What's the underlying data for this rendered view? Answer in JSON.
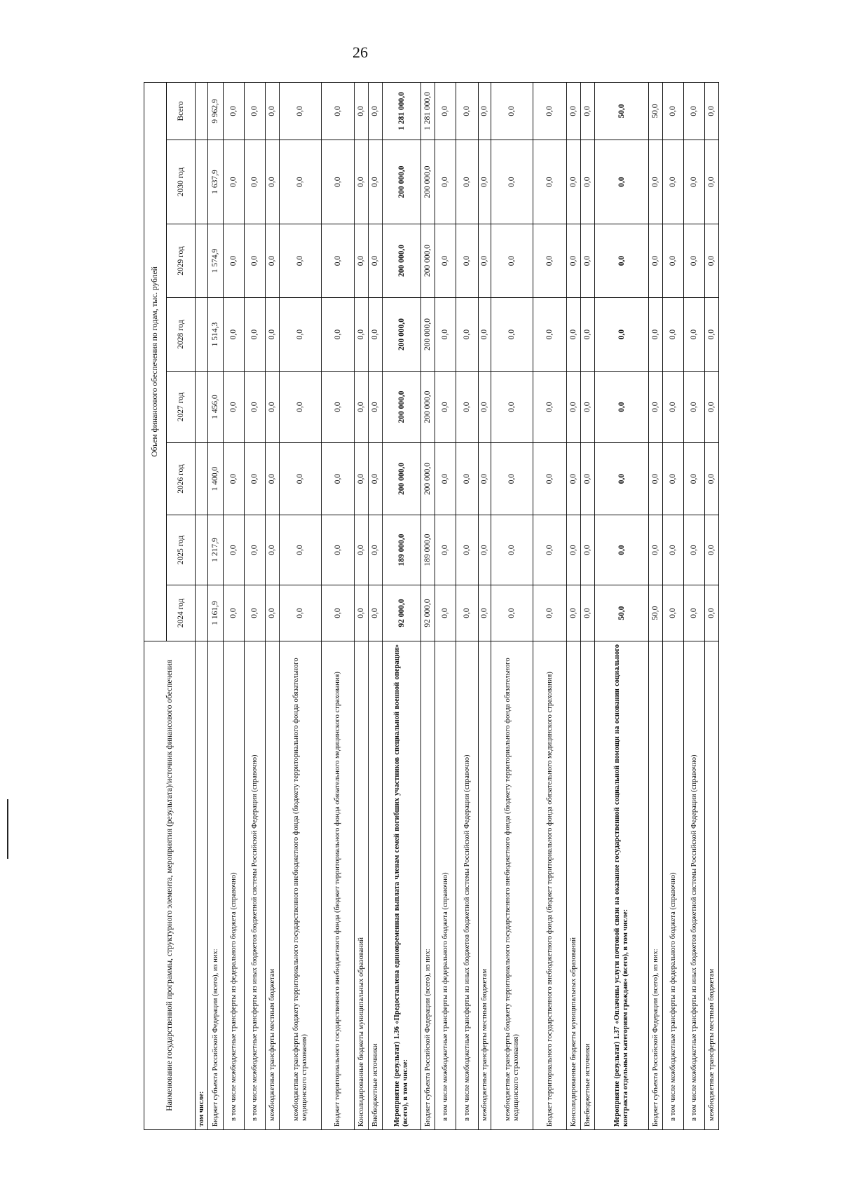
{
  "page_number": "26",
  "header": {
    "name_col": "Наименование государственной программы, структурного элемента, мероприятия (результата)/источник финансового обеспечения",
    "volume_col": "Объем финансового обеспечения по годам, тыс. рублей",
    "years": [
      "2024 год",
      "2025 год",
      "2026 год",
      "2027 год",
      "2028 год",
      "2029 год",
      "2030 год",
      "Всего"
    ]
  },
  "rows": [
    {
      "label": "том числе:",
      "values": [
        "",
        "",
        "",
        "",
        "",
        "",
        "",
        ""
      ],
      "bold": true,
      "h": 18
    },
    {
      "label": "Бюджет субъекта Российской Федерации (всего), из них:",
      "values": [
        "1 161,9",
        "1 217,9",
        "1 400,0",
        "1 456,0",
        "1 514,3",
        "1 574,9",
        "1 637,9",
        "9 962,9"
      ],
      "h": 22
    },
    {
      "label": "в том числе межбюджетные трансферты из федерального бюджета (справочно)",
      "values": [
        "0,0",
        "0,0",
        "0,0",
        "0,0",
        "0,0",
        "0,0",
        "0,0",
        "0,0"
      ],
      "indent": true,
      "h": 30
    },
    {
      "label": "в том числе межбюджетные трансферты из иных бюджетов бюджетной системы Российской Федерации (справочно)",
      "values": [
        "0,0",
        "0,0",
        "0,0",
        "0,0",
        "0,0",
        "0,0",
        "0,0",
        "0,0"
      ],
      "indent": true,
      "h": 30
    },
    {
      "label": "межбюджетные трансферты местным бюджетам",
      "values": [
        "0,0",
        "0,0",
        "0,0",
        "0,0",
        "0,0",
        "0,0",
        "0,0",
        "0,0"
      ],
      "indent": true,
      "h": 20
    },
    {
      "label": "межбюджетные трансферты бюджету территориального государственного внебюджетного фонда (бюджету территориального фонда обязательного медицинского страхования)",
      "values": [
        "0,0",
        "0,0",
        "0,0",
        "0,0",
        "0,0",
        "0,0",
        "0,0",
        "0,0"
      ],
      "indent": true,
      "h": 60
    },
    {
      "label": "Бюджет территориального государственного внебюджетного фонда (бюджет территориального фонда обязательного медицинского страхования)",
      "values": [
        "0,0",
        "0,0",
        "0,0",
        "0,0",
        "0,0",
        "0,0",
        "0,0",
        "0,0"
      ],
      "h": 47
    },
    {
      "label": "Консолидированные бюджеты муниципальных образований",
      "values": [
        "0,0",
        "0,0",
        "0,0",
        "0,0",
        "0,0",
        "0,0",
        "0,0",
        "0,0"
      ],
      "h": 20
    },
    {
      "label": "Внебюджетные источники",
      "values": [
        "0,0",
        "0,0",
        "0,0",
        "0,0",
        "0,0",
        "0,0",
        "0,0",
        "0,0"
      ],
      "h": 20
    },
    {
      "label": "Мероприятие (результат) 1.36 «Предоставлена единовременная выплата членам семей погибших участников специальной военной операции» (всего), в том числе:",
      "values": [
        "92 000,0",
        "189 000,0",
        "200 000,0",
        "200 000,0",
        "200 000,0",
        "200 000,0",
        "200 000,0",
        "1 281 000,0"
      ],
      "bold": true,
      "just": true,
      "h": 55
    },
    {
      "label": "Бюджет субъекта Российской Федерации (всего), из них:",
      "values": [
        "92 000,0",
        "189 000,0",
        "200 000,0",
        "200 000,0",
        "200 000,0",
        "200 000,0",
        "200 000,0",
        "1 281 000,0"
      ],
      "h": 20
    },
    {
      "label": "в том числе межбюджетные трансферты из федерального бюджета (справочно)",
      "values": [
        "0,0",
        "0,0",
        "0,0",
        "0,0",
        "0,0",
        "0,0",
        "0,0",
        "0,0"
      ],
      "indent": true,
      "h": 30
    },
    {
      "label": "в том числе межбюджетные трансферты из иных бюджетов бюджетной системы Российской Федерации (справочно)",
      "values": [
        "0,0",
        "0,0",
        "0,0",
        "0,0",
        "0,0",
        "0,0",
        "0,0",
        "0,0"
      ],
      "indent": true,
      "h": 32
    },
    {
      "label": "межбюджетные трансферты местным бюджетам",
      "values": [
        "0,0",
        "0,0",
        "0,0",
        "0,0",
        "0,0",
        "0,0",
        "0,0",
        "0,0"
      ],
      "indent": true,
      "h": 18
    },
    {
      "label": "межбюджетные трансферты бюджету территориального государственного внебюджетного фонда (бюджету территориального фонда обязательного медицинского страхования)",
      "values": [
        "0,0",
        "0,0",
        "0,0",
        "0,0",
        "0,0",
        "0,0",
        "0,0",
        "0,0"
      ],
      "indent": true,
      "h": 60
    },
    {
      "label": "Бюджет территориального государственного внебюджетного фонда (бюджет территориального фонда обязательного медицинского страхования)",
      "values": [
        "0,0",
        "0,0",
        "0,0",
        "0,0",
        "0,0",
        "0,0",
        "0,0",
        "0,0"
      ],
      "h": 48
    },
    {
      "label": "Консолидированные бюджеты муниципальных образований",
      "values": [
        "0,0",
        "0,0",
        "0,0",
        "0,0",
        "0,0",
        "0,0",
        "0,0",
        "0,0"
      ],
      "h": 20
    },
    {
      "label": "Внебюджетные источники",
      "values": [
        "0,0",
        "0,0",
        "0,0",
        "0,0",
        "0,0",
        "0,0",
        "0,0",
        "0,0"
      ],
      "h": 20
    },
    {
      "label": "Мероприятие (результат) 1.37 «Оплачены услуги почтовой связи на оказание государственной социальной помощи на основании социального контракта отдельным категориям граждан» (всего), в том числе:",
      "values": [
        "50,0",
        "0,0",
        "0,0",
        "0,0",
        "0,0",
        "0,0",
        "0,0",
        "50,0"
      ],
      "bold": true,
      "just": true,
      "h": 77
    },
    {
      "label": "Бюджет субъекта Российской Федерации (всего), из них:",
      "values": [
        "50,0",
        "0,0",
        "0,0",
        "0,0",
        "0,0",
        "0,0",
        "0,0",
        "50,0"
      ],
      "h": 20
    },
    {
      "label": "в том числе межбюджетные трансферты из федерального бюджета (справочно)",
      "values": [
        "0,0",
        "0,0",
        "0,0",
        "0,0",
        "0,0",
        "0,0",
        "0,0",
        "0,0"
      ],
      "indent": true,
      "h": 30
    },
    {
      "label": "в том числе межбюджетные трансферты из иных бюджетов бюджетной системы Российской Федерации (справочно)",
      "values": [
        "0,0",
        "0,0",
        "0,0",
        "0,0",
        "0,0",
        "0,0",
        "0,0",
        "0,0"
      ],
      "indent": true,
      "h": 30
    },
    {
      "label": "межбюджетные трансферты местным бюджетам",
      "values": [
        "0,0",
        "0,0",
        "0,0",
        "0,0",
        "0,0",
        "0,0",
        "0,0",
        "0,0"
      ],
      "indent": true,
      "h": 20
    }
  ]
}
